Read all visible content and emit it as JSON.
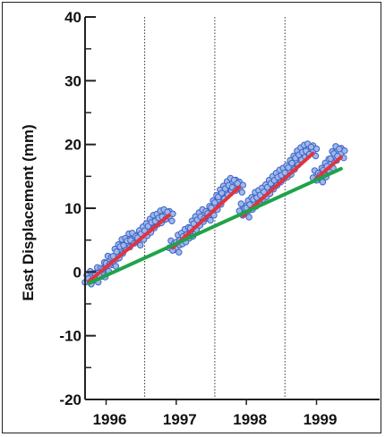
{
  "chart_data": {
    "type": "scatter",
    "title": "",
    "xlabel": "",
    "ylabel": "East Displacement (mm)",
    "xlim": [
      1995.7,
      1999.9
    ],
    "ylim": [
      -20,
      40
    ],
    "yticks": [
      -20,
      -10,
      0,
      10,
      20,
      30,
      40
    ],
    "ytick_labels": [
      "-20",
      "-10",
      "0",
      "10",
      "20",
      "30",
      "40"
    ],
    "xticks": [
      1996,
      1997,
      1998,
      1999
    ],
    "xtick_labels": [
      "1996",
      "1997",
      "1998",
      "1999"
    ],
    "vertical_dividers": [
      1996.55,
      1997.55,
      1998.55
    ],
    "grid": false,
    "colors": {
      "points": "#3f63c7",
      "segment_fit": "#e0343e",
      "trend_fit": "#1fa34a"
    },
    "series": [
      {
        "type": "scatter",
        "points": [
          [
            1995.75,
            -1.2
          ],
          [
            1995.8,
            -0.6
          ],
          [
            1995.85,
            -0.9
          ],
          [
            1995.9,
            0.0
          ],
          [
            1995.95,
            -0.1
          ],
          [
            1996.0,
            0.8
          ],
          [
            1996.05,
            1.8
          ],
          [
            1996.1,
            1.6
          ],
          [
            1996.15,
            2.9
          ],
          [
            1996.2,
            3.6
          ],
          [
            1996.25,
            4.4
          ],
          [
            1996.3,
            4.6
          ],
          [
            1996.35,
            5.3
          ],
          [
            1996.4,
            5.4
          ],
          [
            1996.45,
            4.9
          ],
          [
            1996.5,
            5.8
          ],
          [
            1996.55,
            6.4
          ],
          [
            1996.6,
            6.9
          ],
          [
            1996.65,
            7.6
          ],
          [
            1996.7,
            8.2
          ],
          [
            1996.75,
            8.4
          ],
          [
            1996.8,
            8.9
          ],
          [
            1996.85,
            9.1
          ],
          [
            1996.9,
            8.7
          ],
          [
            1996.95,
            4.2
          ],
          [
            1997.0,
            3.8
          ],
          [
            1997.05,
            5.1
          ],
          [
            1997.1,
            5.4
          ],
          [
            1997.15,
            6.0
          ],
          [
            1997.2,
            6.3
          ],
          [
            1997.25,
            7.3
          ],
          [
            1997.3,
            8.0
          ],
          [
            1997.35,
            8.6
          ],
          [
            1997.4,
            9.1
          ],
          [
            1997.45,
            8.8
          ],
          [
            1997.5,
            9.6
          ],
          [
            1997.55,
            10.5
          ],
          [
            1997.6,
            11.3
          ],
          [
            1997.65,
            12.2
          ],
          [
            1997.7,
            12.8
          ],
          [
            1997.75,
            13.5
          ],
          [
            1997.8,
            14.0
          ],
          [
            1997.85,
            13.7
          ],
          [
            1997.9,
            13.2
          ],
          [
            1997.95,
            10.0
          ],
          [
            1998.0,
            9.3
          ],
          [
            1998.05,
            10.5
          ],
          [
            1998.1,
            11.0
          ],
          [
            1998.15,
            11.8
          ],
          [
            1998.2,
            12.1
          ],
          [
            1998.25,
            12.5
          ],
          [
            1998.3,
            13.0
          ],
          [
            1998.35,
            13.7
          ],
          [
            1998.4,
            14.3
          ],
          [
            1998.45,
            14.8
          ],
          [
            1998.5,
            15.3
          ],
          [
            1998.55,
            15.6
          ],
          [
            1998.6,
            16.0
          ],
          [
            1998.65,
            16.8
          ],
          [
            1998.7,
            17.5
          ],
          [
            1998.75,
            18.3
          ],
          [
            1998.8,
            18.8
          ],
          [
            1998.85,
            19.2
          ],
          [
            1998.9,
            19.4
          ],
          [
            1998.95,
            18.9
          ],
          [
            1999.0,
            15.2
          ],
          [
            1999.05,
            14.8
          ],
          [
            1999.1,
            15.6
          ],
          [
            1999.15,
            16.4
          ],
          [
            1999.2,
            17.0
          ],
          [
            1999.25,
            18.2
          ],
          [
            1999.3,
            19.0
          ],
          [
            1999.35,
            18.6
          ]
        ]
      },
      {
        "type": "line",
        "role": "segment-fit",
        "points": [
          [
            1995.75,
            -1.5
          ],
          [
            1996.9,
            8.9
          ]
        ]
      },
      {
        "type": "line",
        "role": "segment-fit",
        "points": [
          [
            1996.95,
            3.8
          ],
          [
            1997.9,
            13.3
          ]
        ]
      },
      {
        "type": "line",
        "role": "segment-fit",
        "points": [
          [
            1997.95,
            8.8
          ],
          [
            1998.95,
            18.6
          ]
        ]
      },
      {
        "type": "line",
        "role": "segment-fit",
        "points": [
          [
            1999.0,
            14.7
          ],
          [
            1999.35,
            18.0
          ]
        ]
      },
      {
        "type": "line",
        "role": "trend-fit",
        "points": [
          [
            1995.75,
            -1.8
          ],
          [
            1999.35,
            16.2
          ]
        ]
      }
    ]
  }
}
